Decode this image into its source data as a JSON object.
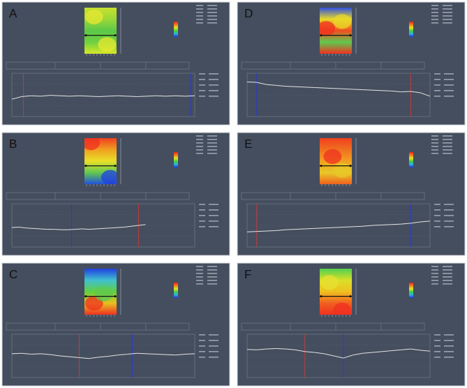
{
  "chart_data": [
    {
      "type": "line",
      "title": "A",
      "x": [
        0,
        1,
        2,
        3,
        4,
        5,
        6,
        7,
        8,
        9,
        10,
        11,
        12,
        13,
        14,
        15,
        16,
        17,
        18,
        19
      ],
      "values": [
        40,
        46,
        48,
        47,
        49,
        48,
        47,
        48,
        47,
        46,
        47,
        48,
        47,
        46,
        47,
        48,
        47,
        48,
        47,
        48
      ],
      "color": "#e6e6e6",
      "xlim": [
        0,
        19
      ],
      "ylim": [
        0,
        100
      ],
      "tick_labels": false,
      "cursors": [
        {
          "x": 1.2,
          "color": "#c83a3a"
        },
        {
          "x": 18.6,
          "color": "#2a3ad0"
        }
      ]
    },
    {
      "type": "line",
      "title": "B",
      "x": [
        0,
        1,
        2,
        3,
        4,
        5,
        6,
        7,
        8,
        9,
        10,
        11,
        12,
        13,
        14,
        15,
        16,
        17,
        18,
        19
      ],
      "values": [
        45,
        46,
        44,
        43,
        42,
        41,
        41,
        40,
        40,
        41,
        42,
        41,
        42,
        43,
        44,
        45,
        46,
        48,
        50,
        52
      ],
      "color": "#e6e6e6",
      "xlim": [
        0,
        26
      ],
      "ylim": [
        0,
        100
      ],
      "tick_labels": false,
      "cursors": [
        {
          "x": 8.5,
          "color": "#2a3ad0"
        },
        {
          "x": 18,
          "color": "#c83a3a"
        }
      ]
    },
    {
      "type": "line",
      "title": "C",
      "x": [
        0,
        1,
        2,
        3,
        4,
        5,
        6,
        7,
        8,
        9,
        10,
        11,
        12,
        13,
        14,
        15,
        16,
        17,
        18,
        19
      ],
      "values": [
        55,
        56,
        54,
        55,
        53,
        50,
        48,
        46,
        44,
        47,
        49,
        52,
        54,
        56,
        55,
        54,
        53,
        52,
        54,
        55
      ],
      "color": "#e6e6e6",
      "xlim": [
        0,
        19
      ],
      "ylim": [
        0,
        100
      ],
      "tick_labels": false,
      "cursors": [
        {
          "x": 7,
          "color": "#c83a3a"
        },
        {
          "x": 12.5,
          "color": "#2a3ad0"
        }
      ]
    },
    {
      "type": "line",
      "title": "D",
      "x": [
        0,
        1,
        2,
        3,
        4,
        5,
        6,
        7,
        8,
        9,
        10,
        11,
        12,
        13,
        14,
        15,
        16,
        17,
        18,
        19
      ],
      "values": [
        80,
        79,
        74,
        72,
        70,
        69,
        68,
        67,
        66,
        65,
        64,
        63,
        62,
        61,
        60,
        59,
        57,
        58,
        55,
        47
      ],
      "color": "#e6e6e6",
      "xlim": [
        0,
        19
      ],
      "ylim": [
        0,
        100
      ],
      "tick_labels": false,
      "cursors": [
        {
          "x": 1,
          "color": "#2a3ad0"
        },
        {
          "x": 17,
          "color": "#c83a3a"
        }
      ]
    },
    {
      "type": "line",
      "title": "E",
      "x": [
        0,
        1,
        2,
        3,
        4,
        5,
        6,
        7,
        8,
        9,
        10,
        11,
        12,
        13,
        14,
        15,
        16,
        17,
        18,
        19
      ],
      "values": [
        35,
        36,
        37,
        38,
        40,
        41,
        42,
        43,
        44,
        45,
        46,
        47,
        48,
        50,
        51,
        52,
        53,
        55,
        58,
        60
      ],
      "color": "#e6e6e6",
      "xlim": [
        0,
        19
      ],
      "ylim": [
        0,
        100
      ],
      "tick_labels": false,
      "cursors": [
        {
          "x": 1,
          "color": "#c83a3a"
        },
        {
          "x": 17,
          "color": "#2a3ad0"
        }
      ]
    },
    {
      "type": "line",
      "title": "F",
      "x": [
        0,
        1,
        2,
        3,
        4,
        5,
        6,
        7,
        8,
        9,
        10,
        11,
        12,
        13,
        14,
        15,
        16,
        17,
        18,
        19
      ],
      "values": [
        65,
        64,
        66,
        67,
        66,
        64,
        60,
        58,
        55,
        50,
        45,
        52,
        56,
        58,
        60,
        62,
        64,
        66,
        63,
        61
      ],
      "color": "#e6e6e6",
      "xlim": [
        0,
        19
      ],
      "ylim": [
        0,
        100
      ],
      "tick_labels": false,
      "cursors": [
        {
          "x": 6,
          "color": "#c83a3a"
        },
        {
          "x": 10,
          "color": "#2a3ad0"
        }
      ]
    }
  ]
}
